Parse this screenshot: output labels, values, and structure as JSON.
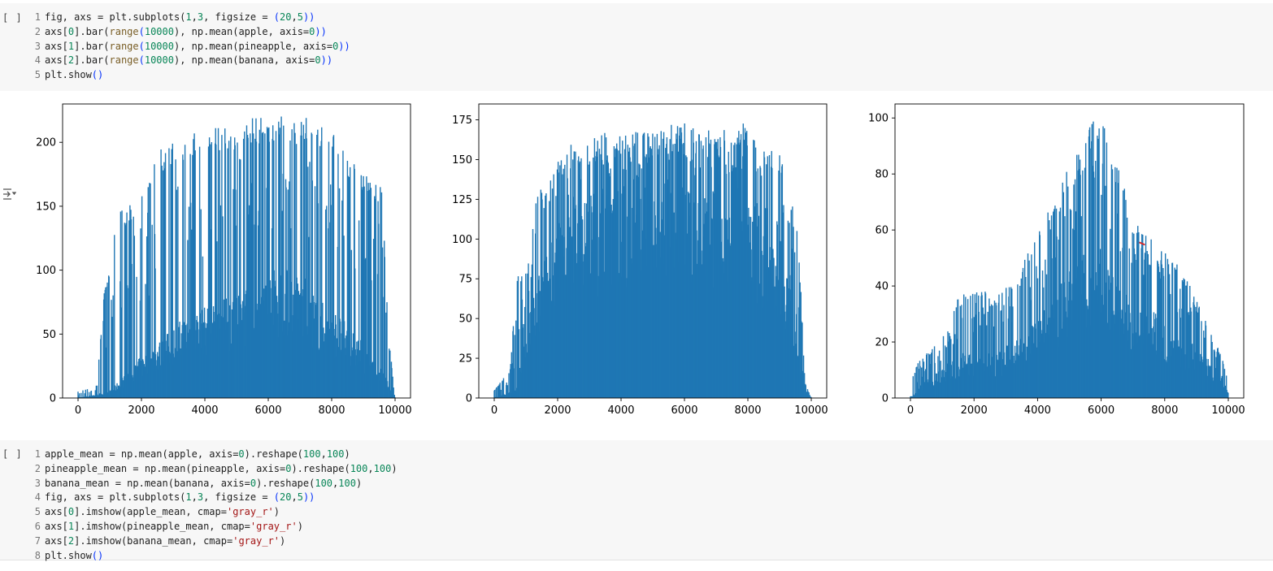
{
  "cell1": {
    "run_label": "[ ]",
    "lines": [
      [
        {
          "t": "fig, axs = plt.subplots(",
          "c": "#1f1f1f"
        },
        {
          "t": "1",
          "c": "#098658"
        },
        {
          "t": ",",
          "c": "#1f1f1f"
        },
        {
          "t": "3",
          "c": "#098658"
        },
        {
          "t": ", figsize = ",
          "c": "#1f1f1f"
        },
        {
          "t": "(",
          "c": "#0431fa"
        },
        {
          "t": "20",
          "c": "#098658"
        },
        {
          "t": ",",
          "c": "#1f1f1f"
        },
        {
          "t": "5",
          "c": "#098658"
        },
        {
          "t": "))",
          "c": "#0431fa"
        }
      ],
      [
        {
          "t": "axs[",
          "c": "#1f1f1f"
        },
        {
          "t": "0",
          "c": "#098658"
        },
        {
          "t": "].bar(",
          "c": "#1f1f1f"
        },
        {
          "t": "range",
          "c": "#795e26"
        },
        {
          "t": "(",
          "c": "#0431fa"
        },
        {
          "t": "10000",
          "c": "#098658"
        },
        {
          "t": "), np.mean(apple, axis=",
          "c": "#1f1f1f"
        },
        {
          "t": "0",
          "c": "#098658"
        },
        {
          "t": "))",
          "c": "#0431fa"
        }
      ],
      [
        {
          "t": "axs[",
          "c": "#1f1f1f"
        },
        {
          "t": "1",
          "c": "#098658"
        },
        {
          "t": "].bar(",
          "c": "#1f1f1f"
        },
        {
          "t": "range",
          "c": "#795e26"
        },
        {
          "t": "(",
          "c": "#0431fa"
        },
        {
          "t": "10000",
          "c": "#098658"
        },
        {
          "t": "), np.mean(pineapple, axis=",
          "c": "#1f1f1f"
        },
        {
          "t": "0",
          "c": "#098658"
        },
        {
          "t": "))",
          "c": "#0431fa"
        }
      ],
      [
        {
          "t": "axs[",
          "c": "#1f1f1f"
        },
        {
          "t": "2",
          "c": "#098658"
        },
        {
          "t": "].bar(",
          "c": "#1f1f1f"
        },
        {
          "t": "range",
          "c": "#795e26"
        },
        {
          "t": "(",
          "c": "#0431fa"
        },
        {
          "t": "10000",
          "c": "#098658"
        },
        {
          "t": "), np.mean(banana, axis=",
          "c": "#1f1f1f"
        },
        {
          "t": "0",
          "c": "#098658"
        },
        {
          "t": "))",
          "c": "#0431fa"
        }
      ],
      [
        {
          "t": "plt.show",
          "c": "#1f1f1f"
        },
        {
          "t": "()",
          "c": "#0431fa"
        }
      ]
    ]
  },
  "cell2": {
    "run_label": "[ ]",
    "lines": [
      [
        {
          "t": "apple_mean = np.mean(apple, axis=",
          "c": "#1f1f1f"
        },
        {
          "t": "0",
          "c": "#098658"
        },
        {
          "t": ").reshape(",
          "c": "#1f1f1f"
        },
        {
          "t": "100",
          "c": "#098658"
        },
        {
          "t": ",",
          "c": "#1f1f1f"
        },
        {
          "t": "100",
          "c": "#098658"
        },
        {
          "t": ")",
          "c": "#1f1f1f"
        }
      ],
      [
        {
          "t": "pineapple_mean = np.mean(pineapple, axis=",
          "c": "#1f1f1f"
        },
        {
          "t": "0",
          "c": "#098658"
        },
        {
          "t": ").reshape(",
          "c": "#1f1f1f"
        },
        {
          "t": "100",
          "c": "#098658"
        },
        {
          "t": ",",
          "c": "#1f1f1f"
        },
        {
          "t": "100",
          "c": "#098658"
        },
        {
          "t": ")",
          "c": "#1f1f1f"
        }
      ],
      [
        {
          "t": "banana_mean = np.mean(banana, axis=",
          "c": "#1f1f1f"
        },
        {
          "t": "0",
          "c": "#098658"
        },
        {
          "t": ").reshape(",
          "c": "#1f1f1f"
        },
        {
          "t": "100",
          "c": "#098658"
        },
        {
          "t": ",",
          "c": "#1f1f1f"
        },
        {
          "t": "100",
          "c": "#098658"
        },
        {
          "t": ")",
          "c": "#1f1f1f"
        }
      ],
      [
        {
          "t": "fig, axs = plt.subplots(",
          "c": "#1f1f1f"
        },
        {
          "t": "1",
          "c": "#098658"
        },
        {
          "t": ",",
          "c": "#1f1f1f"
        },
        {
          "t": "3",
          "c": "#098658"
        },
        {
          "t": ", figsize = ",
          "c": "#1f1f1f"
        },
        {
          "t": "(",
          "c": "#0431fa"
        },
        {
          "t": "20",
          "c": "#098658"
        },
        {
          "t": ",",
          "c": "#1f1f1f"
        },
        {
          "t": "5",
          "c": "#098658"
        },
        {
          "t": "))",
          "c": "#0431fa"
        }
      ],
      [
        {
          "t": "axs[",
          "c": "#1f1f1f"
        },
        {
          "t": "0",
          "c": "#098658"
        },
        {
          "t": "].imshow(apple_mean, cmap=",
          "c": "#1f1f1f"
        },
        {
          "t": "'gray_r'",
          "c": "#a31515"
        },
        {
          "t": ")",
          "c": "#1f1f1f"
        }
      ],
      [
        {
          "t": "axs[",
          "c": "#1f1f1f"
        },
        {
          "t": "1",
          "c": "#098658"
        },
        {
          "t": "].imshow(pineapple_mean, cmap=",
          "c": "#1f1f1f"
        },
        {
          "t": "'gray_r'",
          "c": "#a31515"
        },
        {
          "t": ")",
          "c": "#1f1f1f"
        }
      ],
      [
        {
          "t": "axs[",
          "c": "#1f1f1f"
        },
        {
          "t": "2",
          "c": "#098658"
        },
        {
          "t": "].imshow(banana_mean, cmap=",
          "c": "#1f1f1f"
        },
        {
          "t": "'gray_r'",
          "c": "#a31515"
        },
        {
          "t": ")",
          "c": "#1f1f1f"
        }
      ],
      [
        {
          "t": "plt.show",
          "c": "#1f1f1f"
        },
        {
          "t": "()",
          "c": "#0431fa"
        }
      ]
    ]
  },
  "output": {
    "icon": "output-toggle-icon"
  },
  "colors": {
    "bar": "#1f77b4",
    "annotation": "#d62728"
  },
  "chart_data": [
    {
      "type": "bar",
      "x_range": [
        0,
        10000
      ],
      "xticks": [
        0,
        2000,
        4000,
        6000,
        8000,
        10000
      ],
      "ylim": [
        0,
        230
      ],
      "yticks": [
        0,
        50,
        100,
        150,
        200
      ],
      "envelope": [
        [
          0,
          5
        ],
        [
          600,
          10
        ],
        [
          800,
          80
        ],
        [
          1000,
          100
        ],
        [
          1200,
          150
        ],
        [
          1600,
          150
        ],
        [
          2000,
          170
        ],
        [
          2400,
          190
        ],
        [
          2800,
          200
        ],
        [
          3200,
          205
        ],
        [
          3600,
          210
        ],
        [
          4000,
          212
        ],
        [
          4400,
          215
        ],
        [
          4800,
          212
        ],
        [
          5200,
          218
        ],
        [
          5600,
          220
        ],
        [
          6000,
          222
        ],
        [
          6400,
          224
        ],
        [
          6800,
          218
        ],
        [
          7200,
          220
        ],
        [
          7600,
          215
        ],
        [
          8000,
          210
        ],
        [
          8400,
          195
        ],
        [
          8800,
          180
        ],
        [
          9200,
          172
        ],
        [
          9600,
          165
        ],
        [
          9800,
          50
        ],
        [
          10000,
          0
        ]
      ],
      "base": [
        [
          0,
          0
        ],
        [
          1000,
          5
        ],
        [
          2000,
          30
        ],
        [
          3000,
          50
        ],
        [
          3400,
          60
        ],
        [
          4000,
          65
        ],
        [
          4600,
          70
        ],
        [
          5200,
          80
        ],
        [
          5600,
          80
        ],
        [
          6000,
          90
        ],
        [
          6400,
          95
        ],
        [
          6800,
          90
        ],
        [
          7200,
          85
        ],
        [
          7600,
          70
        ],
        [
          8000,
          65
        ],
        [
          8600,
          50
        ],
        [
          9200,
          35
        ],
        [
          9600,
          20
        ],
        [
          10000,
          0
        ]
      ]
    },
    {
      "type": "bar",
      "x_range": [
        0,
        10000
      ],
      "xticks": [
        0,
        2000,
        4000,
        6000,
        8000,
        10000
      ],
      "ylim": [
        0,
        185
      ],
      "yticks": [
        0,
        25,
        50,
        75,
        100,
        125,
        150,
        175
      ],
      "envelope": [
        [
          0,
          5
        ],
        [
          500,
          18
        ],
        [
          700,
          75
        ],
        [
          1000,
          85
        ],
        [
          1300,
          125
        ],
        [
          1600,
          140
        ],
        [
          2000,
          150
        ],
        [
          2400,
          160
        ],
        [
          2800,
          165
        ],
        [
          3200,
          165
        ],
        [
          3600,
          170
        ],
        [
          4000,
          172
        ],
        [
          4400,
          170
        ],
        [
          4800,
          172
        ],
        [
          5200,
          170
        ],
        [
          5600,
          172
        ],
        [
          6000,
          175
        ],
        [
          6400,
          168
        ],
        [
          6800,
          170
        ],
        [
          7200,
          170
        ],
        [
          7600,
          172
        ],
        [
          8000,
          175
        ],
        [
          8400,
          165
        ],
        [
          8800,
          160
        ],
        [
          9200,
          155
        ],
        [
          9600,
          100
        ],
        [
          9800,
          10
        ],
        [
          10000,
          0
        ]
      ],
      "base": [
        [
          0,
          0
        ],
        [
          700,
          5
        ],
        [
          1200,
          60
        ],
        [
          1800,
          95
        ],
        [
          2400,
          110
        ],
        [
          3000,
          120
        ],
        [
          3600,
          130
        ],
        [
          4200,
          135
        ],
        [
          4800,
          140
        ],
        [
          5400,
          140
        ],
        [
          6000,
          138
        ],
        [
          6600,
          135
        ],
        [
          7200,
          135
        ],
        [
          7800,
          130
        ],
        [
          8400,
          115
        ],
        [
          9000,
          100
        ],
        [
          9400,
          70
        ],
        [
          9800,
          5
        ],
        [
          10000,
          0
        ]
      ]
    },
    {
      "type": "bar",
      "x_range": [
        0,
        10000
      ],
      "xticks": [
        0,
        2000,
        4000,
        6000,
        8000,
        10000
      ],
      "ylim": [
        0,
        105
      ],
      "yticks": [
        0,
        20,
        40,
        60,
        80,
        100
      ],
      "envelope": [
        [
          0,
          5
        ],
        [
          200,
          12
        ],
        [
          400,
          15
        ],
        [
          700,
          18
        ],
        [
          1000,
          22
        ],
        [
          1400,
          35
        ],
        [
          1800,
          38
        ],
        [
          2200,
          40
        ],
        [
          2600,
          35
        ],
        [
          3000,
          40
        ],
        [
          3400,
          45
        ],
        [
          3800,
          55
        ],
        [
          4200,
          65
        ],
        [
          4600,
          70
        ],
        [
          5000,
          85
        ],
        [
          5400,
          90
        ],
        [
          5800,
          102
        ],
        [
          6200,
          95
        ],
        [
          6600,
          80
        ],
        [
          7000,
          65
        ],
        [
          7400,
          58
        ],
        [
          7800,
          55
        ],
        [
          8200,
          50
        ],
        [
          8600,
          45
        ],
        [
          9000,
          35
        ],
        [
          9400,
          25
        ],
        [
          9800,
          15
        ],
        [
          10000,
          5
        ]
      ],
      "base": [
        [
          0,
          0
        ],
        [
          400,
          5
        ],
        [
          1000,
          10
        ],
        [
          1600,
          15
        ],
        [
          2200,
          15
        ],
        [
          2800,
          15
        ],
        [
          3400,
          20
        ],
        [
          4000,
          25
        ],
        [
          4600,
          35
        ],
        [
          5200,
          45
        ],
        [
          5600,
          50
        ],
        [
          6000,
          50
        ],
        [
          6400,
          40
        ],
        [
          6800,
          35
        ],
        [
          7400,
          30
        ],
        [
          8000,
          25
        ],
        [
          8600,
          20
        ],
        [
          9200,
          15
        ],
        [
          9800,
          8
        ],
        [
          10000,
          2
        ]
      ],
      "annotation": {
        "x": 7300,
        "y": 55
      }
    }
  ]
}
